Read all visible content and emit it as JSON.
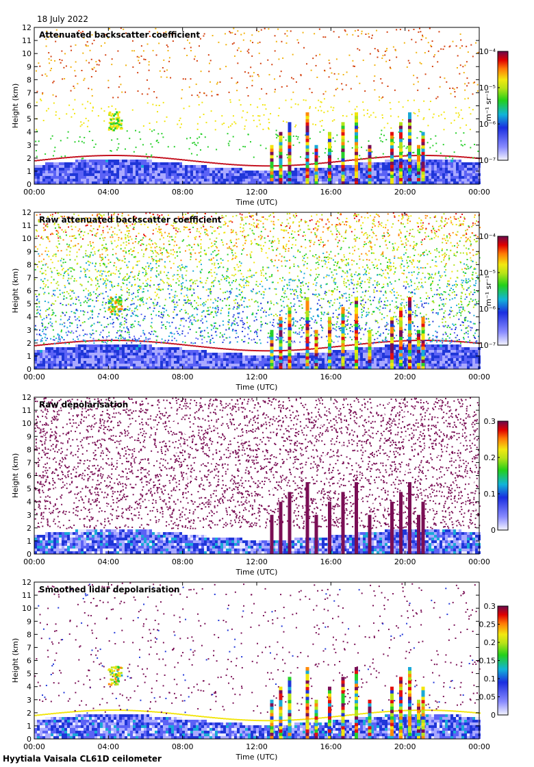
{
  "date": "18 July 2022",
  "footer": "Hyytiala Vaisala CL61D ceilometer",
  "chart_data": [
    {
      "type": "heatmap",
      "title": "Attenuated backscatter coefficient",
      "xlabel": "Time (UTC)",
      "ylabel": "Height (km)",
      "x_ticks": [
        "00:00",
        "04:00",
        "08:00",
        "12:00",
        "16:00",
        "20:00",
        "00:00"
      ],
      "y_ticks": [
        "0",
        "1",
        "2",
        "3",
        "4",
        "5",
        "6",
        "7",
        "8",
        "9",
        "10",
        "11",
        "12"
      ],
      "ylim": [
        0,
        12
      ],
      "colorbar": {
        "scale": "log",
        "range": [
          1e-07,
          0.0001
        ],
        "label": "m⁻¹ sr⁻¹",
        "ticks": [
          "10⁻⁴",
          "10⁻⁵",
          "10⁻⁶",
          "10⁻⁷"
        ]
      },
      "pattern": "sparse"
    },
    {
      "type": "heatmap",
      "title": "Raw attenuated backscatter coefficient",
      "xlabel": "Time (UTC)",
      "ylabel": "Height (km)",
      "x_ticks": [
        "00:00",
        "04:00",
        "08:00",
        "12:00",
        "16:00",
        "20:00",
        "00:00"
      ],
      "y_ticks": [
        "0",
        "1",
        "2",
        "3",
        "4",
        "5",
        "6",
        "7",
        "8",
        "9",
        "10",
        "11",
        "12"
      ],
      "ylim": [
        0,
        12
      ],
      "colorbar": {
        "scale": "log",
        "range": [
          1e-07,
          0.0001
        ],
        "label": "m⁻¹ sr⁻¹",
        "ticks": [
          "10⁻⁴",
          "10⁻⁵",
          "10⁻⁶",
          "10⁻⁷"
        ]
      },
      "pattern": "noisy"
    },
    {
      "type": "heatmap",
      "title": "Raw depolarisation",
      "xlabel": "Time (UTC)",
      "ylabel": "Height (km)",
      "x_ticks": [
        "00:00",
        "04:00",
        "08:00",
        "12:00",
        "16:00",
        "20:00",
        "00:00"
      ],
      "y_ticks": [
        "0",
        "1",
        "2",
        "3",
        "4",
        "5",
        "6",
        "7",
        "8",
        "9",
        "10",
        "11",
        "12"
      ],
      "ylim": [
        0,
        12
      ],
      "colorbar": {
        "scale": "linear",
        "range": [
          0,
          0.3
        ],
        "label": "",
        "ticks": [
          "0.3",
          "0.2",
          "0.1",
          "0"
        ]
      },
      "pattern": "depol"
    },
    {
      "type": "heatmap",
      "title": "Smoothed lidar depolarisation",
      "xlabel": "Time (UTC)",
      "ylabel": "Height (km)",
      "x_ticks": [
        "00:00",
        "04:00",
        "08:00",
        "12:00",
        "16:00",
        "20:00",
        "00:00"
      ],
      "y_ticks": [
        "0",
        "1",
        "2",
        "3",
        "4",
        "5",
        "6",
        "7",
        "8",
        "9",
        "10",
        "11",
        "12"
      ],
      "ylim": [
        0,
        12
      ],
      "colorbar": {
        "scale": "linear",
        "range": [
          0,
          0.3
        ],
        "label": "",
        "ticks": [
          "0.3",
          "0.25",
          "0.2",
          "0.15",
          "0.1",
          "0.05",
          "0"
        ]
      },
      "pattern": "smooth-depol"
    }
  ]
}
